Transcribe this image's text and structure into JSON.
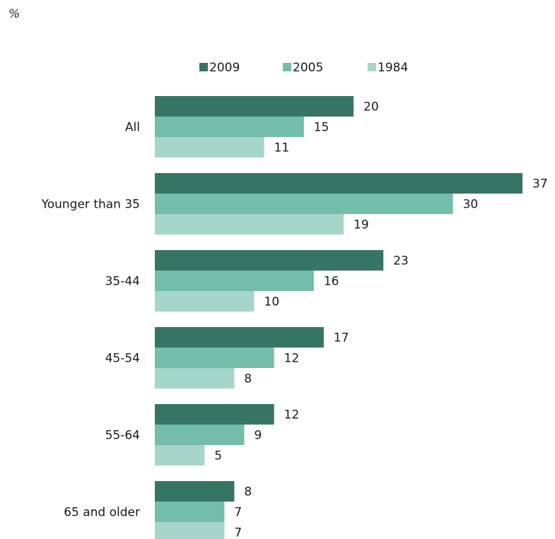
{
  "chart_data": {
    "type": "bar",
    "orientation": "horizontal",
    "unit_label": "%",
    "categories": [
      "All",
      "Younger than 35",
      "35-44",
      "45-54",
      "55-64",
      "65 and older"
    ],
    "series": [
      {
        "name": "2009",
        "color": "#367563",
        "values": [
          20,
          37,
          23,
          17,
          12,
          8
        ]
      },
      {
        "name": "2005",
        "color": "#73bdaa",
        "values": [
          15,
          30,
          16,
          12,
          9,
          7
        ]
      },
      {
        "name": "1984",
        "color": "#a6d5c9",
        "values": [
          11,
          19,
          10,
          8,
          5,
          7
        ]
      }
    ],
    "xlim": [
      0,
      37
    ],
    "grid": false,
    "legend_position": "top"
  }
}
